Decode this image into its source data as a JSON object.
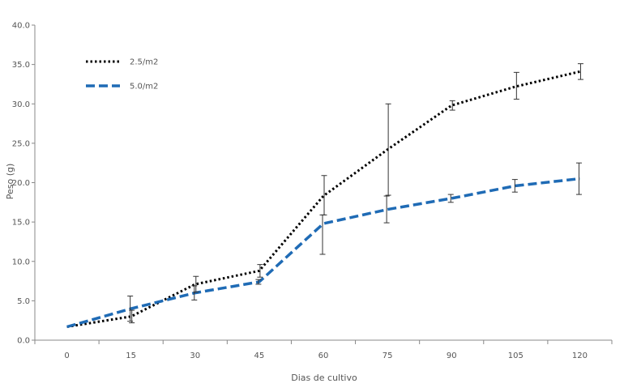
{
  "chart_data": {
    "type": "line",
    "title": "",
    "xlabel": "Dias de cultivo",
    "ylabel": "Peso (g)",
    "ylim": [
      0,
      40
    ],
    "yticks": [
      "0.0",
      "5.0",
      "10.0",
      "15.0",
      "20.0",
      "25.0",
      "30.0",
      "35.0",
      "40.0"
    ],
    "categories": [
      "0",
      "15",
      "30",
      "45",
      "60",
      "75",
      "90",
      "105",
      "120"
    ],
    "grid": false,
    "legend_position": "top-left",
    "series": [
      {
        "name": "2.5/m2",
        "color": "#000000",
        "dash": "dotted",
        "values": [
          1.7,
          3.0,
          7.1,
          8.8,
          18.3,
          24.2,
          29.8,
          32.2,
          34.1
        ],
        "error_low": [
          null,
          2.2,
          6.1,
          8.0,
          15.9,
          18.4,
          29.2,
          30.6,
          33.1
        ],
        "error_high": [
          null,
          3.8,
          8.1,
          9.6,
          20.9,
          30.0,
          30.4,
          34.0,
          35.1
        ]
      },
      {
        "name": "5.0/m2",
        "color": "#1f6bb5",
        "dash": "dashed",
        "values": [
          1.7,
          4.0,
          6.0,
          7.4,
          14.8,
          16.6,
          18.0,
          19.6,
          20.5
        ],
        "error_low": [
          null,
          2.4,
          5.1,
          7.1,
          10.9,
          14.9,
          17.5,
          18.8,
          18.5
        ],
        "error_high": [
          null,
          5.6,
          6.9,
          7.7,
          15.9,
          18.3,
          18.5,
          20.4,
          22.5
        ]
      }
    ]
  }
}
